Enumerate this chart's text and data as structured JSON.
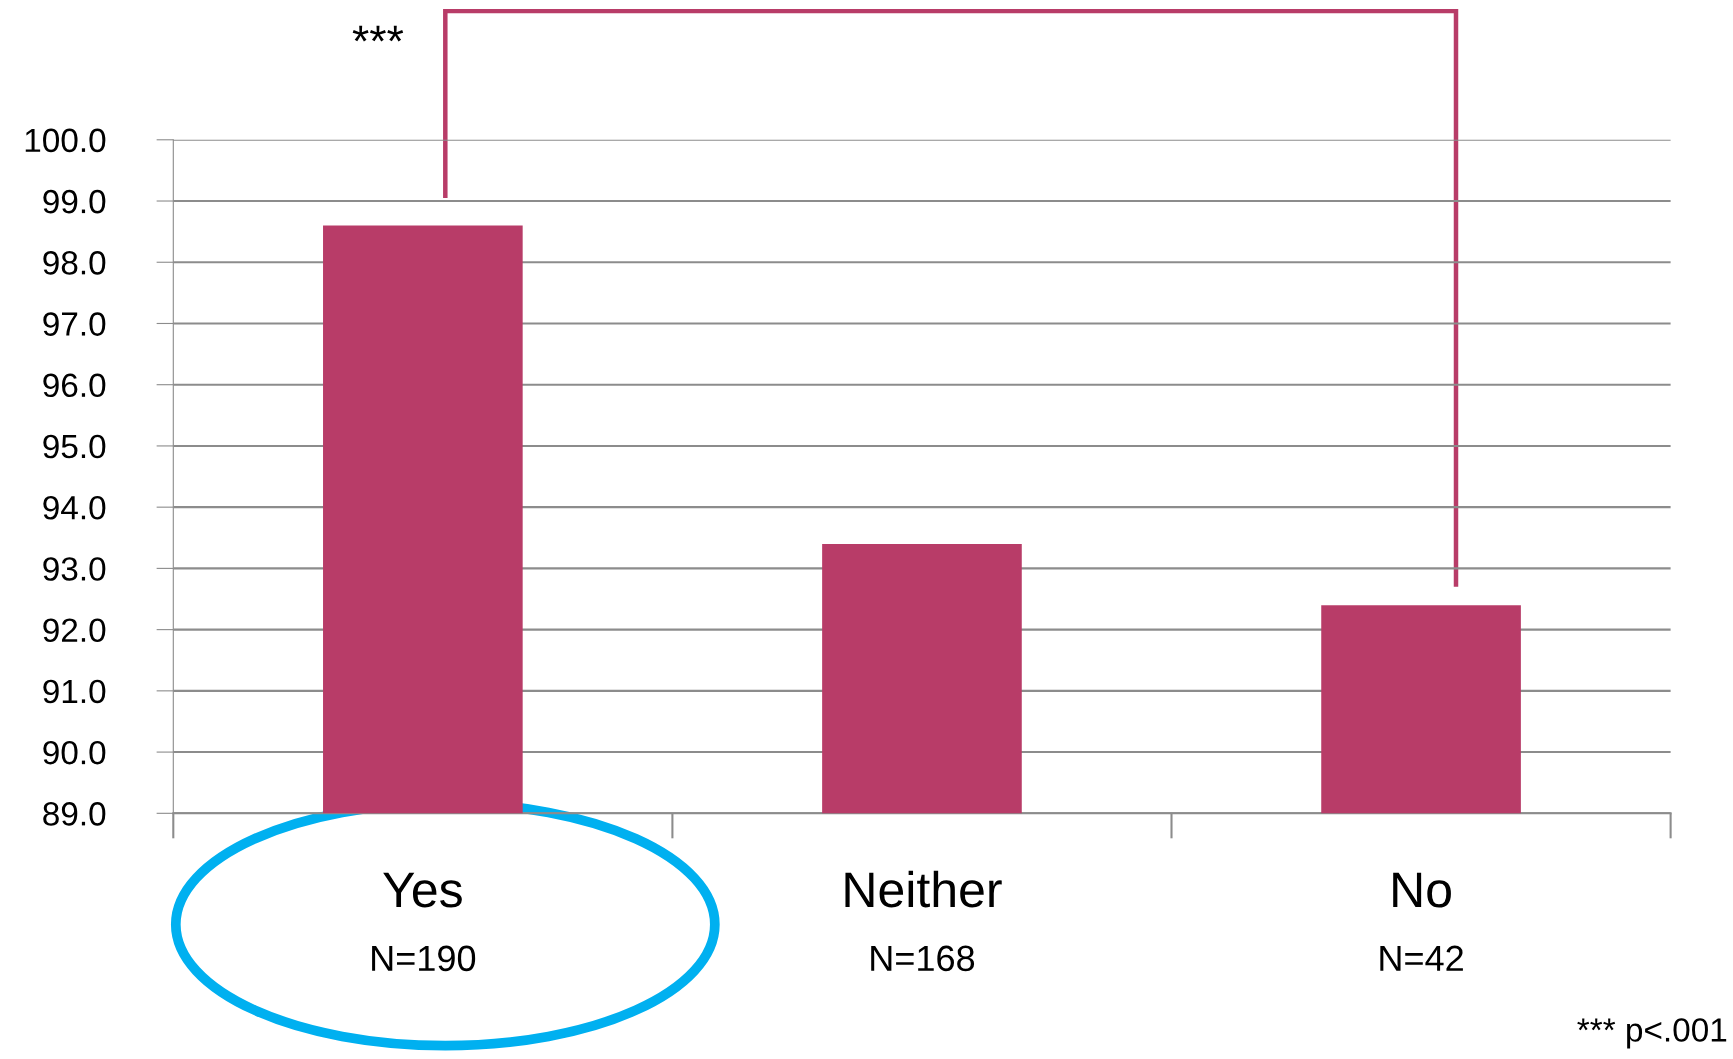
{
  "chart_data": {
    "type": "bar",
    "categories": [
      "Yes\nN=190",
      "Neither\nN=168",
      "No\nN=42"
    ],
    "values": [
      98.6,
      93.4,
      92.4
    ],
    "color": "#b83c68",
    "ylim": [
      89.0,
      100.0
    ],
    "yticks": [
      {
        "value": 89.0,
        "label": "89.0"
      },
      {
        "value": 90.0,
        "label": "90.0"
      },
      {
        "value": 91.0,
        "label": "91.0"
      },
      {
        "value": 92.0,
        "label": "92.0"
      },
      {
        "value": 93.0,
        "label": "93.0"
      },
      {
        "value": 94.0,
        "label": "94.0"
      },
      {
        "value": 95.0,
        "label": "95.0"
      },
      {
        "value": 96.0,
        "label": "96.0"
      },
      {
        "value": 97.0,
        "label": "97.0"
      },
      {
        "value": 98.0,
        "label": "98.0"
      },
      {
        "value": 99.0,
        "label": "99.0"
      },
      {
        "value": 100.0,
        "label": "100.0"
      }
    ],
    "grid": "y",
    "annotations": [
      "***",
      "*** p<.001"
    ]
  }
}
